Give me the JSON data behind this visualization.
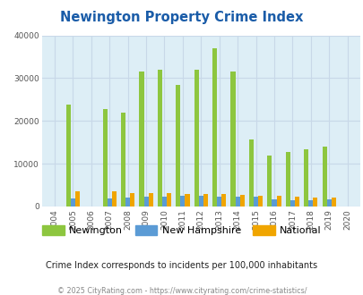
{
  "title": "Newington Property Crime Index",
  "years": [
    "2004",
    "2005",
    "2006",
    "2007",
    "2008",
    "2009",
    "2010",
    "2011",
    "2012",
    "2013",
    "2014",
    "2015",
    "2016",
    "2017",
    "2018",
    "2019",
    "2020"
  ],
  "newington": [
    0,
    23800,
    0,
    22700,
    22000,
    31500,
    31900,
    28500,
    32000,
    36900,
    31500,
    15600,
    11900,
    12800,
    13300,
    14000,
    0
  ],
  "new_hampshire": [
    0,
    1900,
    0,
    1900,
    2100,
    2200,
    2300,
    2600,
    2600,
    2300,
    2400,
    2200,
    1700,
    1400,
    1500,
    1700,
    0
  ],
  "national": [
    0,
    3500,
    0,
    3500,
    3200,
    3200,
    3100,
    3000,
    3000,
    3000,
    2800,
    2500,
    2500,
    2200,
    2000,
    2100,
    0
  ],
  "newington_color": "#8dc63f",
  "nh_color": "#5b9bd5",
  "national_color": "#f0a500",
  "bg_color": "#ddeef6",
  "ylim": [
    0,
    40000
  ],
  "yticks": [
    0,
    10000,
    20000,
    30000,
    40000
  ],
  "subtitle": "Crime Index corresponds to incidents per 100,000 inhabitants",
  "footer": "© 2025 CityRating.com - https://www.cityrating.com/crime-statistics/",
  "legend_labels": [
    "Newington",
    "New Hampshire",
    "National"
  ],
  "title_color": "#1a5ca8",
  "subtitle_color": "#222222",
  "footer_color": "#888888",
  "grid_color": "#c8d8e8"
}
